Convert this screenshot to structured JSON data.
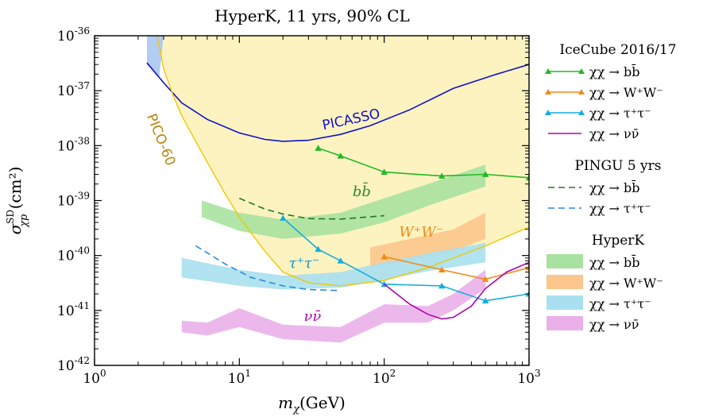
{
  "chart_data": {
    "type": "line",
    "title": "HyperK, 11 yrs, 90% CL",
    "xlabel": "m_χ(GeV)",
    "ylabel": "σ^SD_χp (cm²)",
    "xscale": "log",
    "yscale": "log",
    "xlim": [
      1,
      1000
    ],
    "ylim": [
      1e-42,
      1e-36
    ],
    "x_tick_labels": [
      "10^0",
      "10^1",
      "10^2",
      "10^3"
    ],
    "y_tick_labels": [
      "10^-42",
      "10^-41",
      "10^-40",
      "10^-39",
      "10^-38",
      "10^-37",
      "10^-36"
    ],
    "legend_position": "right of plot",
    "excluded_region_color": "#fdf3c0",
    "annotations": [
      {
        "text": "PICASSO",
        "color": "#1010c8",
        "x": 60,
        "y": 2.5e-38
      },
      {
        "text": "PICO-60",
        "color": "#b8860b",
        "x": 2.7,
        "y": 1.2e-38
      },
      {
        "text": "bb̄",
        "color": "#2e8b2e",
        "x": 70,
        "y": 1.2e-39
      },
      {
        "text": "W⁺W⁻",
        "color": "#ee8c1a",
        "x": 180,
        "y": 2.2e-40
      },
      {
        "text": "τ⁺τ⁻",
        "color": "#1a90c8",
        "x": 28,
        "y": 6e-41
      },
      {
        "text": "νν̄",
        "color": "#b000b0",
        "x": 32,
        "y": 6.5e-42
      }
    ],
    "legend_groups": [
      {
        "header": "IceCube 2016/17",
        "entries": [
          {
            "label": "χχ → bb̄",
            "color": "#22b922",
            "style": "line-triangle"
          },
          {
            "label": "χχ → W⁺W⁻",
            "color": "#ee8c1a",
            "style": "line-triangle"
          },
          {
            "label": "χχ → τ⁺τ⁻",
            "color": "#14aedc",
            "style": "line-triangle"
          },
          {
            "label": "χχ → νν̄",
            "color": "#b000b0",
            "style": "line"
          }
        ]
      },
      {
        "header": "PINGU 5 yrs",
        "entries": [
          {
            "label": "χχ → bb̄",
            "color": "#1e7a1e",
            "style": "dashed"
          },
          {
            "label": "χχ → τ⁺τ⁻",
            "color": "#2a8ad8",
            "style": "dashed"
          }
        ]
      },
      {
        "header": "HyperK",
        "entries": [
          {
            "label": "χχ → bb̄",
            "color": "#a8e2a0",
            "style": "band"
          },
          {
            "label": "χχ → W⁺W⁻",
            "color": "#fcc78c",
            "style": "band"
          },
          {
            "label": "χχ → τ⁺τ⁻",
            "color": "#a8e0f0",
            "style": "band"
          },
          {
            "label": "χχ → νν̄",
            "color": "#eab0ea",
            "style": "band"
          }
        ]
      }
    ],
    "series": [
      {
        "name": "PICASSO",
        "kind": "line",
        "color": "#1010c8",
        "x": [
          2.3,
          3,
          4,
          6,
          10,
          15,
          20,
          30,
          50,
          80,
          150,
          300,
          600,
          1000
        ],
        "y": [
          3.2e-37,
          1.4e-37,
          6e-38,
          3e-38,
          1.7e-38,
          1.3e-38,
          1.2e-38,
          1.25e-38,
          1.6e-38,
          2.3e-38,
          4.5e-38,
          1.1e-37,
          2e-37,
          3e-37
        ]
      },
      {
        "name": "PICO-60",
        "kind": "line",
        "color": "#f0c800",
        "x": [
          2.7,
          3,
          3.5,
          4,
          5,
          6,
          8,
          10,
          15,
          20,
          30,
          50,
          100,
          200,
          500,
          1000
        ],
        "y": [
          1e-36,
          2.5e-37,
          8e-38,
          3.5e-38,
          1.2e-38,
          5e-39,
          1.3e-39,
          5e-40,
          1.2e-40,
          5e-41,
          3.2e-41,
          2.8e-41,
          3.5e-41,
          6e-41,
          1.5e-40,
          3.3e-40
        ]
      },
      {
        "name": "IceCube χχ → bb̄",
        "kind": "line-triangle",
        "color": "#22b922",
        "x": [
          35,
          50,
          100,
          250,
          500,
          1000
        ],
        "y": [
          9e-39,
          6.5e-39,
          3.3e-39,
          2.8e-39,
          3e-39,
          2.6e-39
        ]
      },
      {
        "name": "IceCube χχ → W⁺W⁻",
        "kind": "line-triangle",
        "color": "#ee8c1a",
        "x": [
          100,
          250,
          500,
          1000
        ],
        "y": [
          9.5e-41,
          5.5e-41,
          3.7e-41,
          6e-41
        ]
      },
      {
        "name": "IceCube χχ → τ⁺τ⁻",
        "kind": "line-triangle",
        "color": "#14aedc",
        "x": [
          20,
          35,
          50,
          100,
          250,
          500,
          1000
        ],
        "y": [
          4.8e-40,
          1.3e-40,
          8e-41,
          3e-41,
          2.8e-41,
          1.5e-41,
          2e-41
        ]
      },
      {
        "name": "IceCube χχ → νν̄",
        "kind": "line",
        "color": "#b000b0",
        "x": [
          100,
          150,
          200,
          250,
          300,
          400,
          500,
          700,
          1000
        ],
        "y": [
          3e-41,
          1.3e-41,
          8.5e-42,
          7e-42,
          7.5e-42,
          1.2e-41,
          2.5e-41,
          5e-41,
          7.5e-41
        ]
      },
      {
        "name": "PINGU χχ → bb̄",
        "kind": "dashed",
        "color": "#1e7a1e",
        "x": [
          10,
          15,
          20,
          30,
          50,
          100
        ],
        "y": [
          1.1e-39,
          7e-40,
          5.7e-40,
          4.7e-40,
          4.6e-40,
          5.3e-40
        ]
      },
      {
        "name": "PINGU χχ → τ⁺τ⁻",
        "kind": "dashed",
        "color": "#2a8ad8",
        "x": [
          5,
          8,
          12,
          20,
          30,
          50
        ],
        "y": [
          1.5e-40,
          7e-41,
          4e-41,
          2.8e-41,
          2.4e-41,
          2.3e-41
        ]
      },
      {
        "name": "HyperK χχ → bb̄",
        "kind": "band",
        "color": "#a8e2a0",
        "x": [
          5.5,
          10,
          20,
          50,
          100,
          200,
          500
        ],
        "lower": [
          5e-40,
          2.8e-40,
          2e-40,
          2.5e-40,
          4e-40,
          8e-40,
          1.8e-39
        ],
        "upper": [
          1e-39,
          6e-40,
          4.5e-40,
          6e-40,
          1.1e-39,
          2e-39,
          4.5e-39
        ]
      },
      {
        "name": "HyperK χχ → W⁺W⁻",
        "kind": "band",
        "color": "#fcc78c",
        "x": [
          80,
          150,
          300,
          500
        ],
        "lower": [
          6e-41,
          8e-41,
          1.2e-40,
          2e-40
        ],
        "upper": [
          1.4e-40,
          2e-40,
          3e-40,
          6e-40
        ]
      },
      {
        "name": "HyperK χχ → τ⁺τ⁻",
        "kind": "band",
        "color": "#a8e0f0",
        "x": [
          4,
          10,
          20,
          50,
          100,
          200,
          500
        ],
        "lower": [
          4e-41,
          2.8e-41,
          2.4e-41,
          2.6e-41,
          3.6e-41,
          5.2e-41,
          7.5e-41
        ],
        "upper": [
          9e-41,
          5.5e-41,
          4.3e-41,
          5e-41,
          7.5e-41,
          1.1e-40,
          1.7e-40
        ]
      },
      {
        "name": "HyperK χχ → νν̄",
        "kind": "band",
        "color": "#eab0ea",
        "x": [
          4,
          6,
          10,
          20,
          50,
          100,
          200,
          300,
          500
        ],
        "lower": [
          4e-42,
          3.5e-42,
          5e-42,
          3e-42,
          2.6e-42,
          6e-42,
          6e-42,
          1e-41,
          2.5e-41
        ],
        "upper": [
          6.5e-42,
          6e-42,
          1.1e-41,
          5.5e-42,
          5e-42,
          1.3e-41,
          1.2e-41,
          2e-41,
          5.5e-41
        ]
      },
      {
        "name": "blue left band",
        "kind": "band",
        "color": "#aac8f0",
        "x": [
          2.3,
          2.8,
          3.0
        ],
        "lower": [
          3e-37,
          1.8e-37,
          1e-36
        ],
        "upper": [
          1e-36,
          1e-36,
          1e-36
        ]
      }
    ]
  }
}
